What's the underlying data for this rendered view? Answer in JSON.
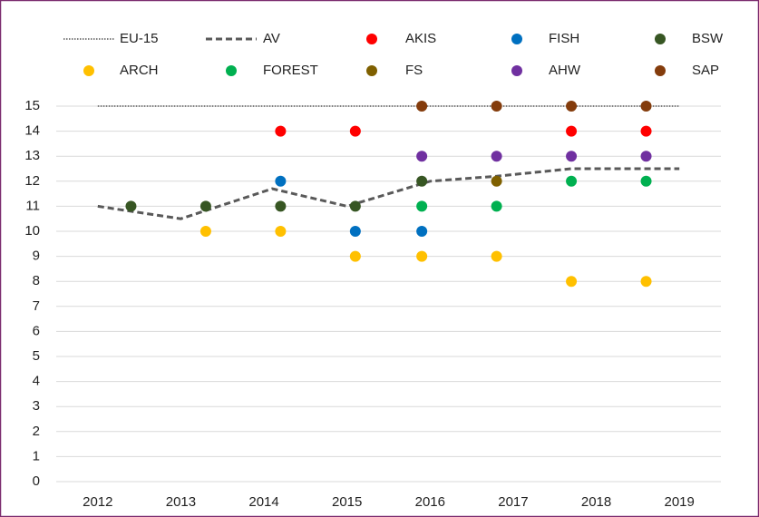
{
  "chart_data": {
    "type": "scatter",
    "xlim": [
      2011.5,
      2019.5
    ],
    "xticks": [
      2012,
      2013,
      2014,
      2015,
      2016,
      2017,
      2018,
      2019
    ],
    "ylim": [
      0,
      15
    ],
    "yticks": [
      0,
      1,
      2,
      3,
      4,
      5,
      6,
      7,
      8,
      9,
      10,
      11,
      12,
      13,
      14,
      15
    ],
    "grid": true,
    "series": [
      {
        "name": "EU-15",
        "type": "line",
        "line_style": "dotted",
        "color": "#000000",
        "x": [
          2012,
          2019
        ],
        "values": [
          15,
          15
        ]
      },
      {
        "name": "AV",
        "type": "line",
        "line_style": "dashed",
        "color": "#595959",
        "x": [
          2012,
          2013,
          2014.1,
          2015,
          2016,
          2016.8,
          2017.7,
          2019
        ],
        "values": [
          11,
          10.5,
          11.7,
          11,
          12,
          12.2,
          12.5,
          12.5
        ]
      },
      {
        "name": "AKIS",
        "type": "scatter",
        "color": "#ff0000",
        "x": [
          2014.2,
          2015.1,
          2017.7,
          2018.6
        ],
        "values": [
          14,
          14,
          14,
          14
        ]
      },
      {
        "name": "FISH",
        "type": "scatter",
        "color": "#0070c0",
        "x": [
          2014.2,
          2015.1,
          2015.9
        ],
        "values": [
          12,
          10,
          10
        ]
      },
      {
        "name": "BSW",
        "type": "scatter",
        "color": "#375623",
        "x": [
          2012.4,
          2013.3,
          2014.2,
          2015.1,
          2015.9
        ],
        "values": [
          11,
          11,
          11,
          11,
          12
        ]
      },
      {
        "name": "ARCH",
        "type": "scatter",
        "color": "#ffc000",
        "x": [
          2013.3,
          2014.2,
          2015.1,
          2015.9,
          2016.8,
          2017.7,
          2018.6
        ],
        "values": [
          10,
          10,
          9,
          9,
          9,
          8,
          8
        ]
      },
      {
        "name": "FOREST",
        "type": "scatter",
        "color": "#00b050",
        "x": [
          2015.9,
          2016.8,
          2017.7,
          2018.6
        ],
        "values": [
          11,
          11,
          12,
          12
        ]
      },
      {
        "name": "FS",
        "type": "scatter",
        "color": "#7f6000",
        "x": [
          2016.8
        ],
        "values": [
          12
        ]
      },
      {
        "name": "AHW",
        "type": "scatter",
        "color": "#7030a0",
        "x": [
          2015.9,
          2016.8,
          2017.7,
          2018.6
        ],
        "values": [
          13,
          13,
          13,
          13
        ]
      },
      {
        "name": "SAP",
        "type": "scatter",
        "color": "#843c0c",
        "x": [
          2015.9,
          2016.8,
          2017.7,
          2018.6
        ],
        "values": [
          15,
          15,
          15,
          15
        ]
      }
    ]
  }
}
